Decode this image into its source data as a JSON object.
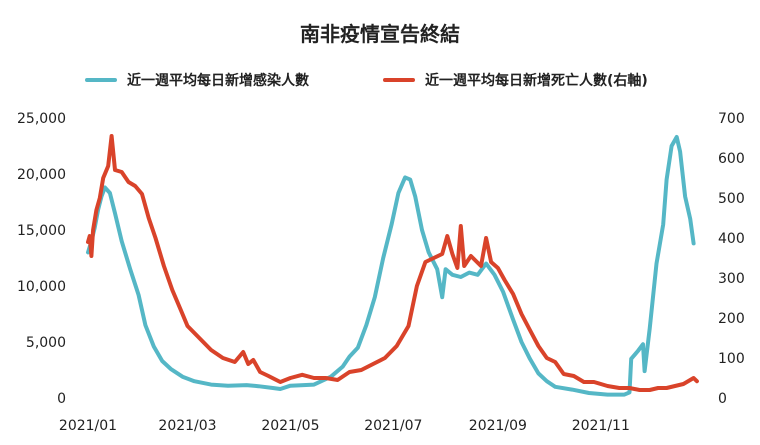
{
  "chart_data": {
    "type": "line",
    "title": "南非疫情宣告終結",
    "colors": {
      "cases": "#55b7c6",
      "deaths": "#d9432a"
    },
    "x_tick_labels": [
      "2021/01",
      "2021/03",
      "2021/05",
      "2021/07",
      "2021/09",
      "2021/11"
    ],
    "x_range": [
      "2021-01-01",
      "2021-12-31"
    ],
    "y_left": {
      "ticks": [
        "0",
        "5,000",
        "10,000",
        "15,000",
        "20,000",
        "25,000"
      ],
      "min": 0,
      "max": 25000
    },
    "y_right": {
      "ticks": [
        "0",
        "100",
        "200",
        "300",
        "400",
        "500",
        "600",
        "700"
      ],
      "min": 0,
      "max": 700
    },
    "grid": false,
    "legend_position": "top",
    "series": [
      {
        "name": "近一週平均每日新增感染人數",
        "axis": "left",
        "points": [
          [
            "2021-01-01",
            13000
          ],
          [
            "2021-01-03",
            14000
          ],
          [
            "2021-01-05",
            15200
          ],
          [
            "2021-01-07",
            16800
          ],
          [
            "2021-01-09",
            18000
          ],
          [
            "2021-01-11",
            18800
          ],
          [
            "2021-01-14",
            18300
          ],
          [
            "2021-01-17",
            16500
          ],
          [
            "2021-01-21",
            14000
          ],
          [
            "2021-01-26",
            11500
          ],
          [
            "2021-01-31",
            9200
          ],
          [
            "2021-02-04",
            6500
          ],
          [
            "2021-02-09",
            4600
          ],
          [
            "2021-02-14",
            3300
          ],
          [
            "2021-02-19",
            2600
          ],
          [
            "2021-02-26",
            1900
          ],
          [
            "2021-03-05",
            1500
          ],
          [
            "2021-03-15",
            1200
          ],
          [
            "2021-03-25",
            1100
          ],
          [
            "2021-04-05",
            1150
          ],
          [
            "2021-04-12",
            1050
          ],
          [
            "2021-04-20",
            900
          ],
          [
            "2021-04-25",
            800
          ],
          [
            "2021-05-01",
            1100
          ],
          [
            "2021-05-15",
            1200
          ],
          [
            "2021-05-25",
            1900
          ],
          [
            "2021-06-01",
            2800
          ],
          [
            "2021-06-05",
            3700
          ],
          [
            "2021-06-10",
            4500
          ],
          [
            "2021-06-15",
            6500
          ],
          [
            "2021-06-20",
            9000
          ],
          [
            "2021-06-25",
            12500
          ],
          [
            "2021-06-30",
            15500
          ],
          [
            "2021-07-04",
            18300
          ],
          [
            "2021-07-08",
            19700
          ],
          [
            "2021-07-11",
            19500
          ],
          [
            "2021-07-14",
            18000
          ],
          [
            "2021-07-18",
            15000
          ],
          [
            "2021-07-22",
            13000
          ],
          [
            "2021-07-27",
            11500
          ],
          [
            "2021-07-30",
            9000
          ],
          [
            "2021-08-01",
            11500
          ],
          [
            "2021-08-05",
            11000
          ],
          [
            "2021-08-10",
            10800
          ],
          [
            "2021-08-15",
            11200
          ],
          [
            "2021-08-20",
            11000
          ],
          [
            "2021-08-25",
            12000
          ],
          [
            "2021-08-30",
            11000
          ],
          [
            "2021-09-04",
            9500
          ],
          [
            "2021-09-10",
            7000
          ],
          [
            "2021-09-15",
            5000
          ],
          [
            "2021-09-20",
            3500
          ],
          [
            "2021-09-25",
            2200
          ],
          [
            "2021-09-30",
            1500
          ],
          [
            "2021-10-05",
            1000
          ],
          [
            "2021-10-15",
            750
          ],
          [
            "2021-10-25",
            450
          ],
          [
            "2021-11-05",
            300
          ],
          [
            "2021-11-15",
            300
          ],
          [
            "2021-11-18",
            500
          ],
          [
            "2021-11-19",
            3500
          ],
          [
            "2021-11-23",
            4200
          ],
          [
            "2021-11-26",
            4800
          ],
          [
            "2021-11-27",
            2400
          ],
          [
            "2021-11-30",
            6200
          ],
          [
            "2021-12-04",
            12000
          ],
          [
            "2021-12-08",
            15500
          ],
          [
            "2021-12-10",
            19500
          ],
          [
            "2021-12-13",
            22500
          ],
          [
            "2021-12-16",
            23300
          ],
          [
            "2021-12-18",
            22000
          ],
          [
            "2021-12-21",
            18000
          ],
          [
            "2021-12-24",
            16000
          ],
          [
            "2021-12-26",
            13800
          ]
        ]
      },
      {
        "name": "近一週平均每日新增死亡人數(右軸)",
        "axis": "right",
        "points": [
          [
            "2021-01-01",
            390
          ],
          [
            "2021-01-02",
            405
          ],
          [
            "2021-01-03",
            355
          ],
          [
            "2021-01-04",
            420
          ],
          [
            "2021-01-06",
            470
          ],
          [
            "2021-01-08",
            500
          ],
          [
            "2021-01-10",
            550
          ],
          [
            "2021-01-13",
            580
          ],
          [
            "2021-01-15",
            655
          ],
          [
            "2021-01-17",
            570
          ],
          [
            "2021-01-21",
            565
          ],
          [
            "2021-01-25",
            540
          ],
          [
            "2021-01-29",
            530
          ],
          [
            "2021-02-02",
            510
          ],
          [
            "2021-02-06",
            450
          ],
          [
            "2021-02-10",
            400
          ],
          [
            "2021-02-15",
            330
          ],
          [
            "2021-02-20",
            270
          ],
          [
            "2021-02-25",
            220
          ],
          [
            "2021-03-01",
            180
          ],
          [
            "2021-03-08",
            150
          ],
          [
            "2021-03-15",
            120
          ],
          [
            "2021-03-22",
            100
          ],
          [
            "2021-03-29",
            90
          ],
          [
            "2021-04-03",
            115
          ],
          [
            "2021-04-06",
            85
          ],
          [
            "2021-04-09",
            95
          ],
          [
            "2021-04-13",
            65
          ],
          [
            "2021-04-18",
            55
          ],
          [
            "2021-04-25",
            40
          ],
          [
            "2021-05-01",
            50
          ],
          [
            "2021-05-08",
            58
          ],
          [
            "2021-05-15",
            50
          ],
          [
            "2021-05-22",
            50
          ],
          [
            "2021-05-29",
            45
          ],
          [
            "2021-06-05",
            65
          ],
          [
            "2021-06-12",
            70
          ],
          [
            "2021-06-19",
            85
          ],
          [
            "2021-06-26",
            100
          ],
          [
            "2021-07-03",
            130
          ],
          [
            "2021-07-10",
            180
          ],
          [
            "2021-07-15",
            280
          ],
          [
            "2021-07-20",
            340
          ],
          [
            "2021-07-25",
            350
          ],
          [
            "2021-07-30",
            360
          ],
          [
            "2021-08-02",
            405
          ],
          [
            "2021-08-05",
            360
          ],
          [
            "2021-08-08",
            325
          ],
          [
            "2021-08-10",
            430
          ],
          [
            "2021-08-12",
            330
          ],
          [
            "2021-08-16",
            355
          ],
          [
            "2021-08-22",
            330
          ],
          [
            "2021-08-25",
            400
          ],
          [
            "2021-08-28",
            340
          ],
          [
            "2021-09-01",
            325
          ],
          [
            "2021-09-05",
            295
          ],
          [
            "2021-09-10",
            260
          ],
          [
            "2021-09-15",
            210
          ],
          [
            "2021-09-20",
            170
          ],
          [
            "2021-09-25",
            130
          ],
          [
            "2021-09-30",
            100
          ],
          [
            "2021-10-05",
            90
          ],
          [
            "2021-10-10",
            60
          ],
          [
            "2021-10-16",
            55
          ],
          [
            "2021-10-22",
            40
          ],
          [
            "2021-10-28",
            40
          ],
          [
            "2021-11-05",
            30
          ],
          [
            "2021-11-12",
            25
          ],
          [
            "2021-11-18",
            25
          ],
          [
            "2021-11-24",
            20
          ],
          [
            "2021-11-30",
            20
          ],
          [
            "2021-12-05",
            25
          ],
          [
            "2021-12-10",
            25
          ],
          [
            "2021-12-15",
            30
          ],
          [
            "2021-12-20",
            35
          ],
          [
            "2021-12-24",
            45
          ],
          [
            "2021-12-26",
            50
          ],
          [
            "2021-12-28",
            42
          ]
        ]
      }
    ]
  }
}
